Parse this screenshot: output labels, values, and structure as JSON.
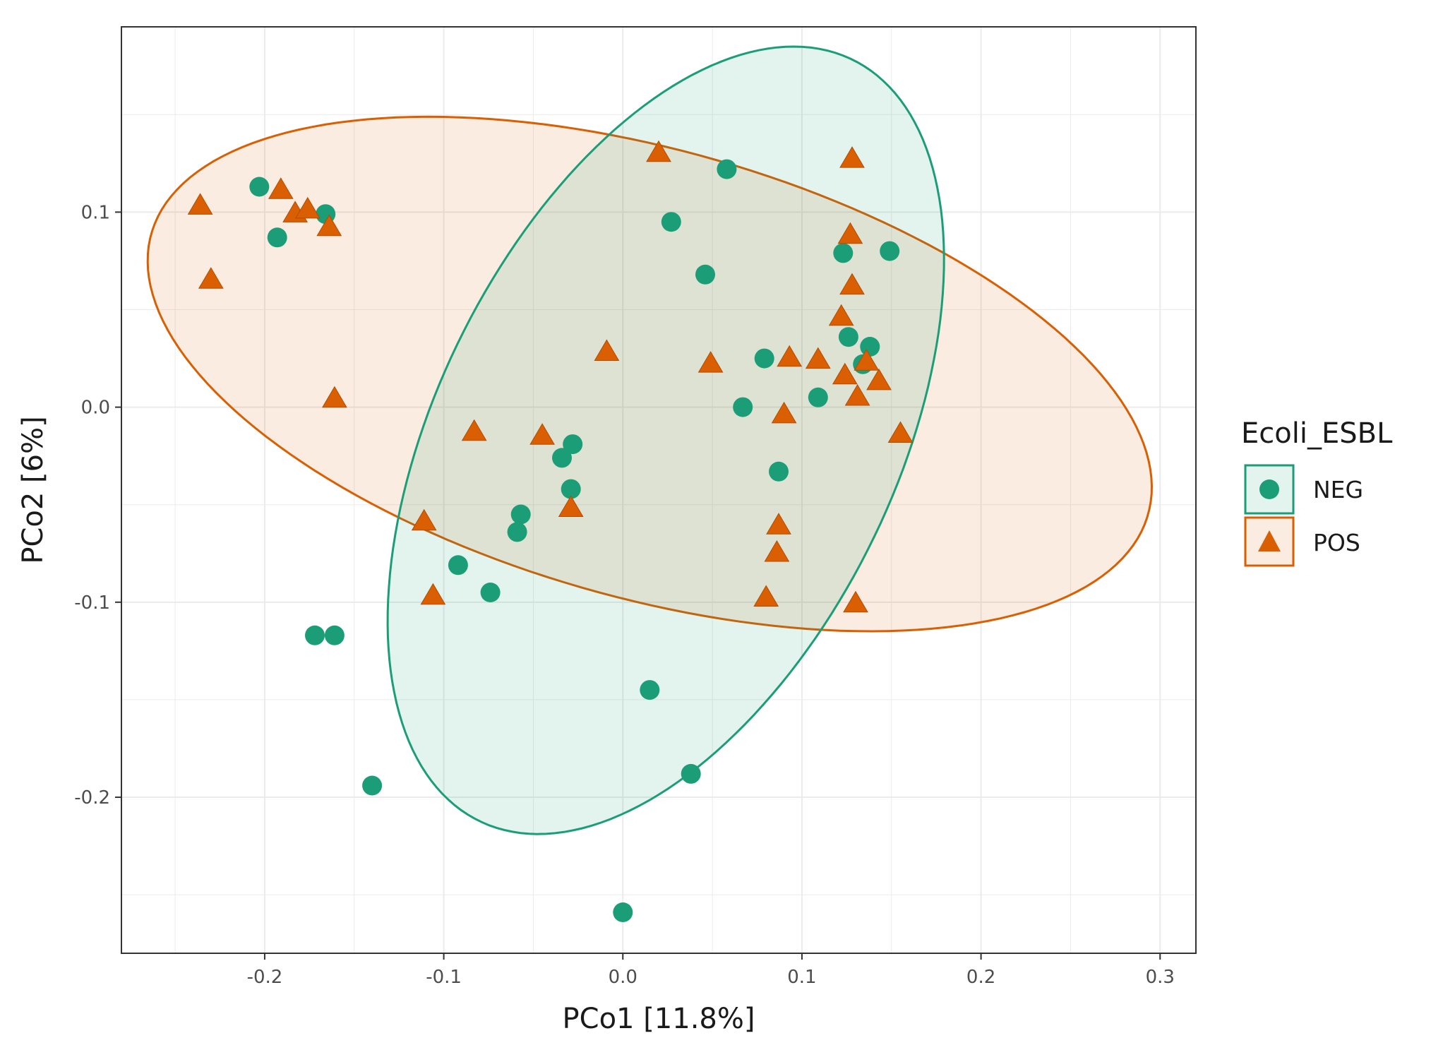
{
  "chart_data": {
    "type": "scatter",
    "title": "",
    "xlabel": "PCo1 [11.8%]",
    "ylabel": "PCo2 [6%]",
    "xlim": [
      -0.28,
      0.32
    ],
    "ylim": [
      -0.28,
      0.195
    ],
    "grid": true,
    "x_ticks": [
      -0.2,
      -0.1,
      0.0,
      0.1,
      0.2,
      0.3
    ],
    "x_tick_labels": [
      "-0.2",
      "-0.1",
      "0.0",
      "0.1",
      "0.2",
      "0.3"
    ],
    "y_ticks": [
      -0.2,
      -0.1,
      0.0,
      0.1
    ],
    "y_tick_labels": [
      "-0.2",
      "-0.1",
      "0.0",
      "0.1"
    ],
    "legend": {
      "title": "Ecoli_ESBL",
      "position": "right",
      "entries": [
        "NEG",
        "POS"
      ]
    },
    "colors": {
      "NEG": "#1b9e77",
      "POS": "#d95f02"
    },
    "series": [
      {
        "name": "NEG",
        "marker": "circle",
        "points": [
          [
            -0.203,
            0.113
          ],
          [
            -0.193,
            0.087
          ],
          [
            -0.166,
            0.099
          ],
          [
            0.027,
            0.095
          ],
          [
            0.058,
            0.122
          ],
          [
            0.046,
            0.068
          ],
          [
            0.123,
            0.079
          ],
          [
            0.149,
            0.08
          ],
          [
            0.079,
            0.025
          ],
          [
            0.126,
            0.036
          ],
          [
            0.138,
            0.031
          ],
          [
            0.134,
            0.022
          ],
          [
            0.067,
            0.0
          ],
          [
            0.109,
            0.005
          ],
          [
            0.087,
            -0.033
          ],
          [
            -0.028,
            -0.019
          ],
          [
            -0.034,
            -0.026
          ],
          [
            -0.029,
            -0.042
          ],
          [
            -0.057,
            -0.055
          ],
          [
            -0.059,
            -0.064
          ],
          [
            -0.092,
            -0.081
          ],
          [
            -0.074,
            -0.095
          ],
          [
            -0.172,
            -0.117
          ],
          [
            -0.161,
            -0.117
          ],
          [
            0.015,
            -0.145
          ],
          [
            -0.14,
            -0.194
          ],
          [
            0.038,
            -0.188
          ],
          [
            0.0,
            -0.259
          ]
        ]
      },
      {
        "name": "POS",
        "marker": "triangle",
        "points": [
          [
            -0.236,
            0.104
          ],
          [
            -0.191,
            0.112
          ],
          [
            -0.183,
            0.1
          ],
          [
            -0.176,
            0.102
          ],
          [
            -0.164,
            0.093
          ],
          [
            -0.23,
            0.066
          ],
          [
            0.02,
            0.131
          ],
          [
            0.128,
            0.128
          ],
          [
            0.127,
            0.089
          ],
          [
            0.128,
            0.063
          ],
          [
            0.122,
            0.047
          ],
          [
            -0.009,
            0.029
          ],
          [
            0.049,
            0.023
          ],
          [
            0.093,
            0.026
          ],
          [
            0.109,
            0.025
          ],
          [
            0.124,
            0.017
          ],
          [
            0.136,
            0.024
          ],
          [
            0.143,
            0.014
          ],
          [
            0.131,
            0.006
          ],
          [
            -0.161,
            0.005
          ],
          [
            0.09,
            -0.003
          ],
          [
            0.155,
            -0.013
          ],
          [
            -0.083,
            -0.012
          ],
          [
            -0.045,
            -0.014
          ],
          [
            -0.029,
            -0.051
          ],
          [
            -0.111,
            -0.058
          ],
          [
            0.087,
            -0.06
          ],
          [
            0.086,
            -0.074
          ],
          [
            -0.106,
            -0.096
          ],
          [
            0.08,
            -0.097
          ],
          [
            0.13,
            -0.1
          ]
        ]
      }
    ],
    "ellipses": [
      {
        "name": "NEG",
        "center": [
          0.024,
          -0.017
        ],
        "semi_major": 0.2215,
        "semi_minor": 0.1258,
        "rotation_deg": 60
      },
      {
        "name": "POS",
        "center": [
          0.015,
          0.017
        ],
        "semi_major": 0.2875,
        "semi_minor": 0.1155,
        "rotation_deg": -14
      }
    ]
  }
}
